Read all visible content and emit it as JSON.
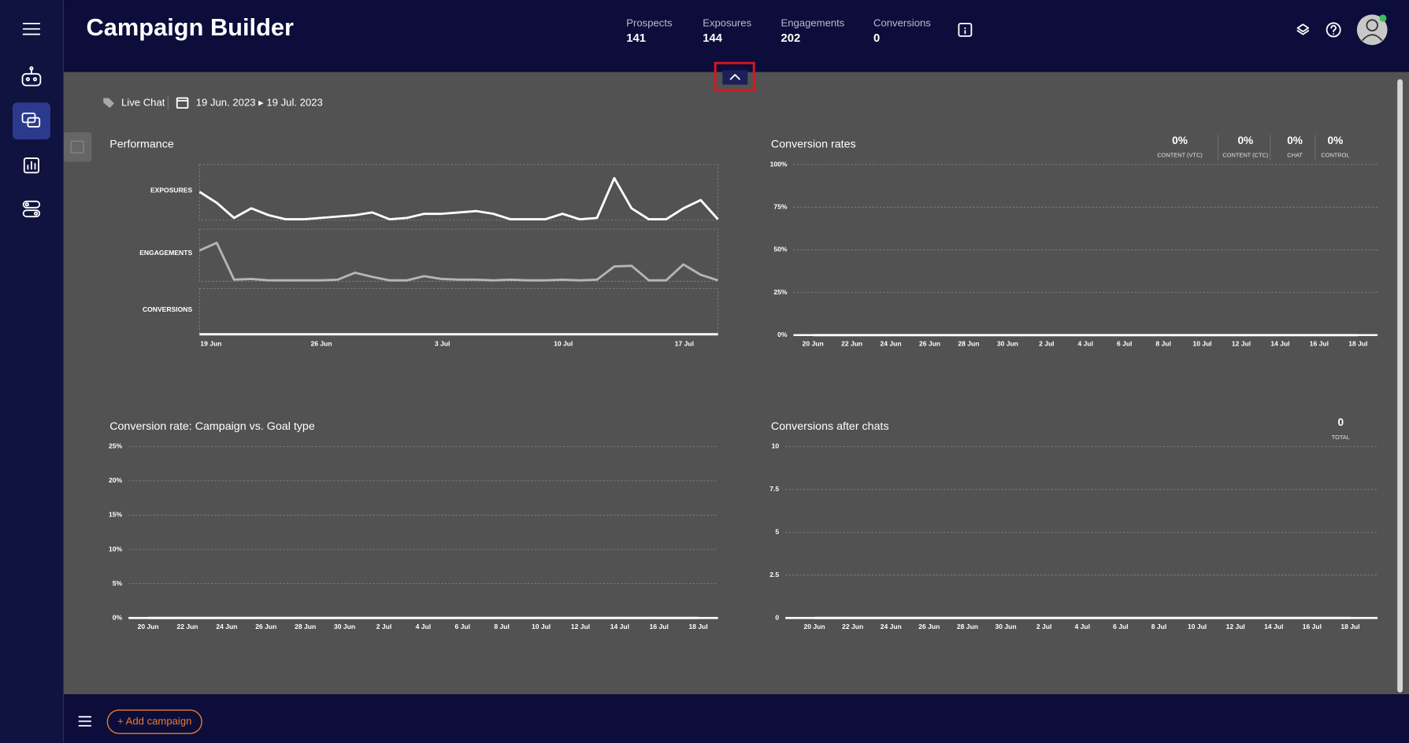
{
  "header": {
    "title": "Campaign Builder",
    "stats": [
      {
        "label": "Prospects",
        "value": 141
      },
      {
        "label": "Exposures",
        "value": 144
      },
      {
        "label": "Engagements",
        "value": 202
      },
      {
        "label": "Conversions",
        "value": 0
      }
    ]
  },
  "filters": {
    "channel": "Live Chat",
    "date_range": "19 Jun. 2023 ▸ 19 Jul. 2023"
  },
  "chart_data": [
    {
      "type": "multi_line",
      "title": "Performance",
      "categories": [
        "19 Jun",
        null,
        null,
        null,
        null,
        null,
        null,
        "26 Jun",
        null,
        null,
        null,
        null,
        null,
        null,
        "3 Jul",
        null,
        null,
        null,
        null,
        null,
        null,
        "10 Jul",
        null,
        null,
        null,
        null,
        null,
        null,
        "17 Jul",
        null,
        null
      ],
      "series": [
        {
          "name": "EXPOSURES",
          "color": "#ffffff",
          "ylim": [
            0,
            36
          ],
          "values": [
            20,
            12,
            1,
            8,
            3,
            0,
            0,
            1,
            2,
            3,
            5,
            0,
            1,
            4,
            4,
            5,
            6,
            4,
            0,
            0,
            0,
            4,
            0,
            1,
            30,
            8,
            0,
            0,
            8,
            14,
            0
          ]
        },
        {
          "name": "ENGAGEMENTS",
          "color": "#b5b5b5",
          "ylim": [
            0,
            66
          ],
          "values": [
            43,
            54,
            1,
            2,
            0,
            0,
            0,
            0,
            1,
            11,
            5,
            0,
            0,
            6,
            2,
            1,
            1,
            0,
            1,
            0,
            0,
            1,
            0,
            1,
            20,
            21,
            0,
            0,
            23,
            8,
            0
          ]
        },
        {
          "name": "CONVERSIONS",
          "color": "#ffffff",
          "ylim": [
            0,
            1
          ],
          "values": [
            0,
            0,
            0,
            0,
            0,
            0,
            0,
            0,
            0,
            0,
            0,
            0,
            0,
            0,
            0,
            0,
            0,
            0,
            0,
            0,
            0,
            0,
            0,
            0,
            0,
            0,
            0,
            0,
            0,
            0,
            0
          ]
        }
      ]
    },
    {
      "type": "line",
      "title": "Conversion rates",
      "summary": [
        {
          "label": "CONTENT (VTC)",
          "value": 0,
          "value_label": "0%"
        },
        {
          "label": "CONTENT (CTC)",
          "value": 0,
          "value_label": "0%"
        },
        {
          "label": "CHAT",
          "value": 0,
          "value_label": "0%"
        },
        {
          "label": "CONTROL",
          "value": 0,
          "value_label": "0%"
        }
      ],
      "categories": [
        "20 Jun",
        "22 Jun",
        "24 Jun",
        "26 Jun",
        "28 Jun",
        "30 Jun",
        "2 Jul",
        "4 Jul",
        "6 Jul",
        "8 Jul",
        "10 Jul",
        "12 Jul",
        "14 Jul",
        "16 Jul",
        "18 Jul"
      ],
      "series": [
        {
          "color": "#ffffff",
          "values": [
            0,
            0,
            0,
            0,
            0,
            0,
            0,
            0,
            0,
            0,
            0,
            0,
            0,
            0,
            0
          ]
        }
      ],
      "ylim": [
        0,
        100
      ],
      "yticks": [
        {
          "value": 0,
          "label": "0%"
        },
        {
          "value": 25,
          "label": "25%"
        },
        {
          "value": 50,
          "label": "50%"
        },
        {
          "value": 75,
          "label": "75%"
        },
        {
          "value": 100,
          "label": "100%"
        }
      ],
      "grid": true
    },
    {
      "type": "line",
      "title": "Conversion rate: Campaign vs. Goal type",
      "categories": [
        "20 Jun",
        "22 Jun",
        "24 Jun",
        "26 Jun",
        "28 Jun",
        "30 Jun",
        "2 Jul",
        "4 Jul",
        "6 Jul",
        "8 Jul",
        "10 Jul",
        "12 Jul",
        "14 Jul",
        "16 Jul",
        "18 Jul"
      ],
      "series": [
        {
          "color": "#ffffff",
          "values": [
            0,
            0,
            0,
            0,
            0,
            0,
            0,
            0,
            0,
            0,
            0,
            0,
            0,
            0,
            0
          ]
        }
      ],
      "ylim": [
        0,
        25
      ],
      "yticks": [
        {
          "value": 0,
          "label": "0%"
        },
        {
          "value": 5,
          "label": "5%"
        },
        {
          "value": 10,
          "label": "10%"
        },
        {
          "value": 15,
          "label": "15%"
        },
        {
          "value": 20,
          "label": "20%"
        },
        {
          "value": 25,
          "label": "25%"
        }
      ],
      "grid": true
    },
    {
      "type": "line",
      "title": "Conversions after chats",
      "summary": [
        {
          "label": "TOTAL",
          "value": 0
        }
      ],
      "categories": [
        "20 Jun",
        "22 Jun",
        "24 Jun",
        "26 Jun",
        "28 Jun",
        "30 Jun",
        "2 Jul",
        "4 Jul",
        "6 Jul",
        "8 Jul",
        "10 Jul",
        "12 Jul",
        "14 Jul",
        "16 Jul",
        "18 Jul"
      ],
      "series": [
        {
          "color": "#ffffff",
          "values": [
            0,
            0,
            0,
            0,
            0,
            0,
            0,
            0,
            0,
            0,
            0,
            0,
            0,
            0,
            0
          ]
        }
      ],
      "ylim": [
        0,
        10
      ],
      "yticks": [
        0,
        2.5,
        5,
        7.5,
        10
      ],
      "grid": true
    }
  ],
  "footer": {
    "button": "+ Add campaign"
  }
}
